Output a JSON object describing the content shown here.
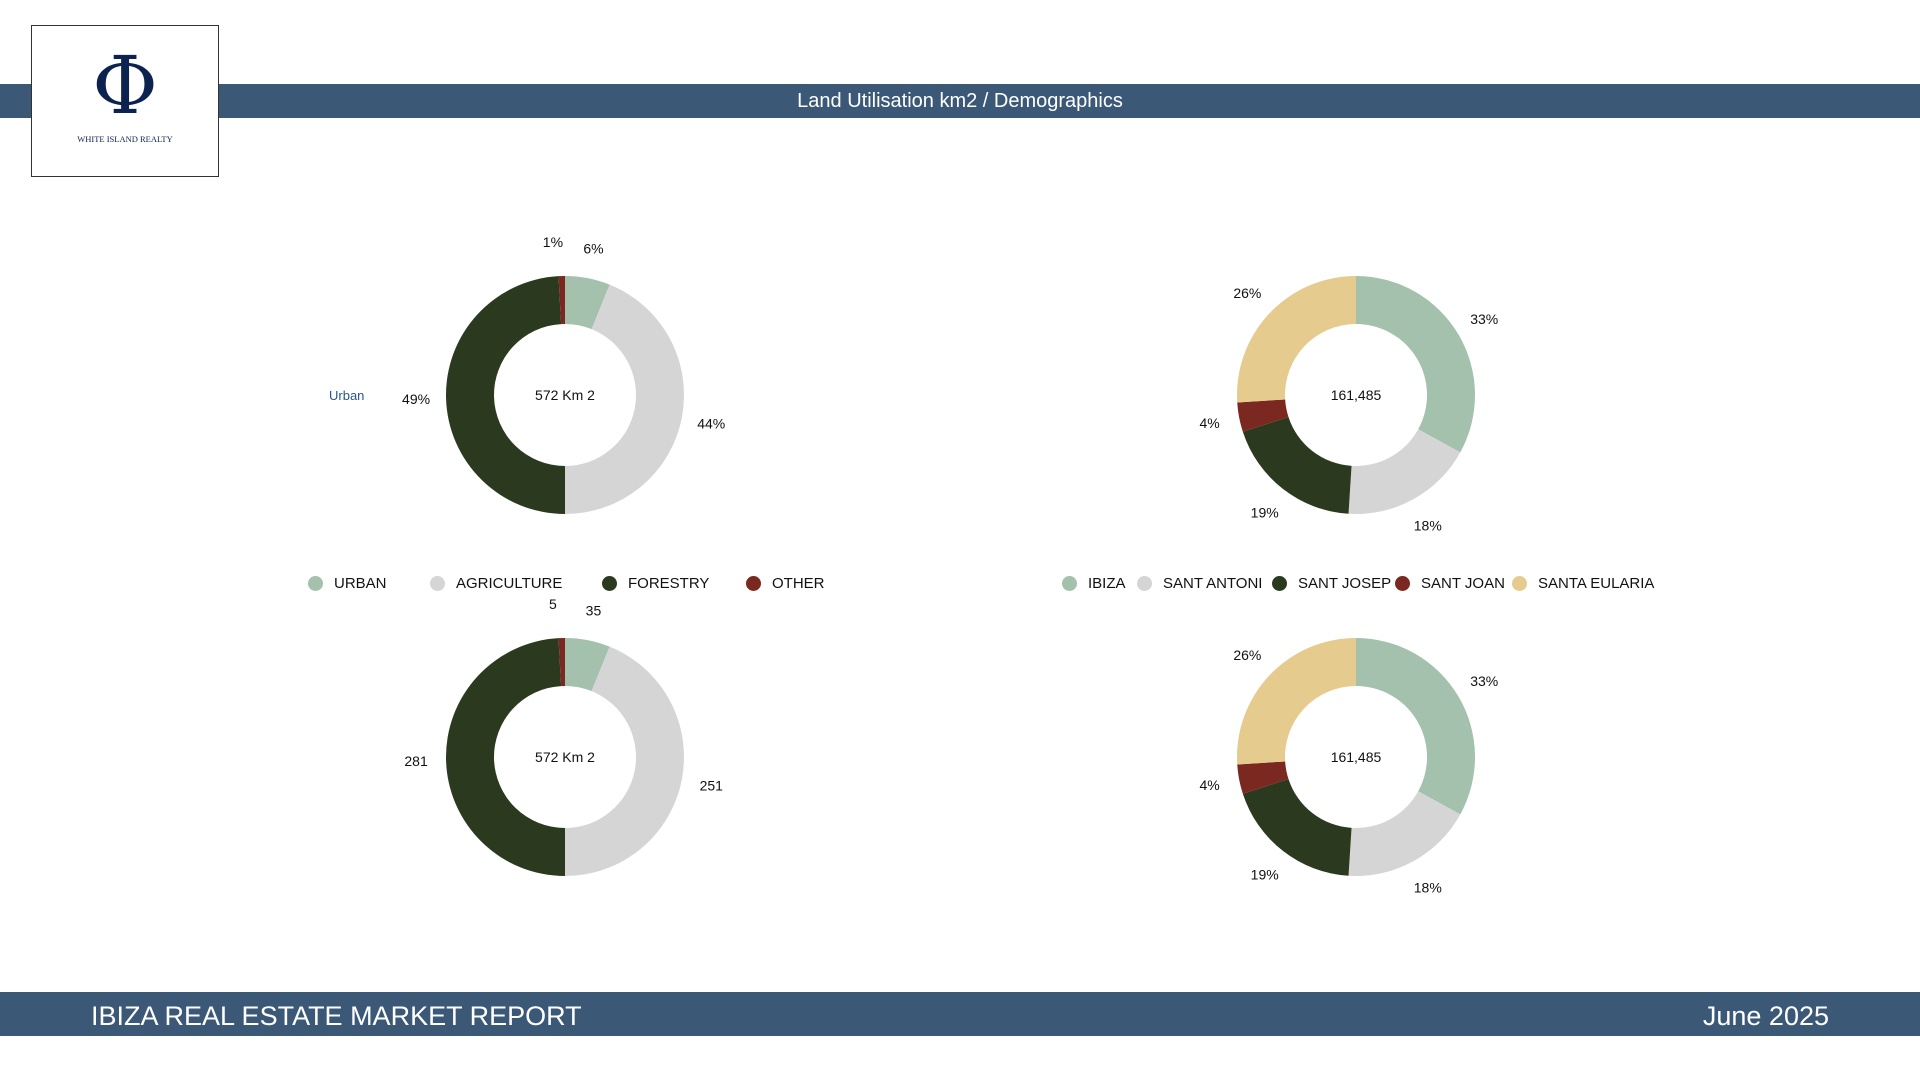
{
  "header": {
    "title": "Land Utilisation km2 / Demographics"
  },
  "logo": {
    "symbol": "Φ",
    "name": "WHITE ISLAND REALTY"
  },
  "side_label": "Urban",
  "footer": {
    "report_title": "IBIZA REAL ESTATE MARKET REPORT",
    "date": "June 2025"
  },
  "legends": {
    "land": [
      {
        "label": "URBAN",
        "color": "#a3c1ad"
      },
      {
        "label": "AGRICULTURE",
        "color": "#d5d5d5"
      },
      {
        "label": "FORESTRY",
        "color": "#2b3a1f"
      },
      {
        "label": "OTHER",
        "color": "#7b2820"
      }
    ],
    "demographics": [
      {
        "label": "IBIZA",
        "color": "#a3c1ad"
      },
      {
        "label": "SANT ANTONI",
        "color": "#d5d5d5"
      },
      {
        "label": "SANT JOSEP",
        "color": "#2b3a1f"
      },
      {
        "label": "SANT JOAN",
        "color": "#7b2820"
      },
      {
        "label": "SANTA EULARIA",
        "color": "#e5cb8e"
      }
    ]
  },
  "chart_data": [
    {
      "type": "pie",
      "variant": "donut",
      "title": "Land Utilisation (%)",
      "center_label": "572 Km 2",
      "categories": [
        "URBAN",
        "AGRICULTURE",
        "FORESTRY",
        "OTHER"
      ],
      "values": [
        35,
        251,
        281,
        5
      ],
      "labels": [
        "6%",
        "44%",
        "49%",
        "1%"
      ],
      "colors": [
        "#a3c1ad",
        "#d5d5d5",
        "#2b3a1f",
        "#7b2820"
      ]
    },
    {
      "type": "pie",
      "variant": "donut",
      "title": "Demographics (%)",
      "center_label": "161,485",
      "categories": [
        "IBIZA",
        "SANT ANTONI",
        "SANT JOSEP",
        "SANT JOAN",
        "SANTA EULARIA"
      ],
      "values": [
        33,
        18,
        19,
        4,
        26
      ],
      "labels": [
        "33%",
        "18%",
        "19%",
        "4%",
        "26%"
      ],
      "colors": [
        "#a3c1ad",
        "#d5d5d5",
        "#2b3a1f",
        "#7b2820",
        "#e5cb8e"
      ]
    },
    {
      "type": "pie",
      "variant": "donut",
      "title": "Land Utilisation (km2)",
      "center_label": "572 Km 2",
      "categories": [
        "URBAN",
        "AGRICULTURE",
        "FORESTRY",
        "OTHER"
      ],
      "values": [
        35,
        251,
        281,
        5
      ],
      "labels": [
        "35",
        "251",
        "281",
        "5"
      ],
      "colors": [
        "#a3c1ad",
        "#d5d5d5",
        "#2b3a1f",
        "#7b2820"
      ]
    },
    {
      "type": "pie",
      "variant": "donut",
      "title": "Demographics (%)",
      "center_label": "161,485",
      "categories": [
        "IBIZA",
        "SANT ANTONI",
        "SANT JOSEP",
        "SANT JOAN",
        "SANTA EULARIA"
      ],
      "values": [
        33,
        18,
        19,
        4,
        26
      ],
      "labels": [
        "33%",
        "18%",
        "19%",
        "4%",
        "26%"
      ],
      "colors": [
        "#a3c1ad",
        "#d5d5d5",
        "#2b3a1f",
        "#7b2820",
        "#e5cb8e"
      ]
    }
  ]
}
